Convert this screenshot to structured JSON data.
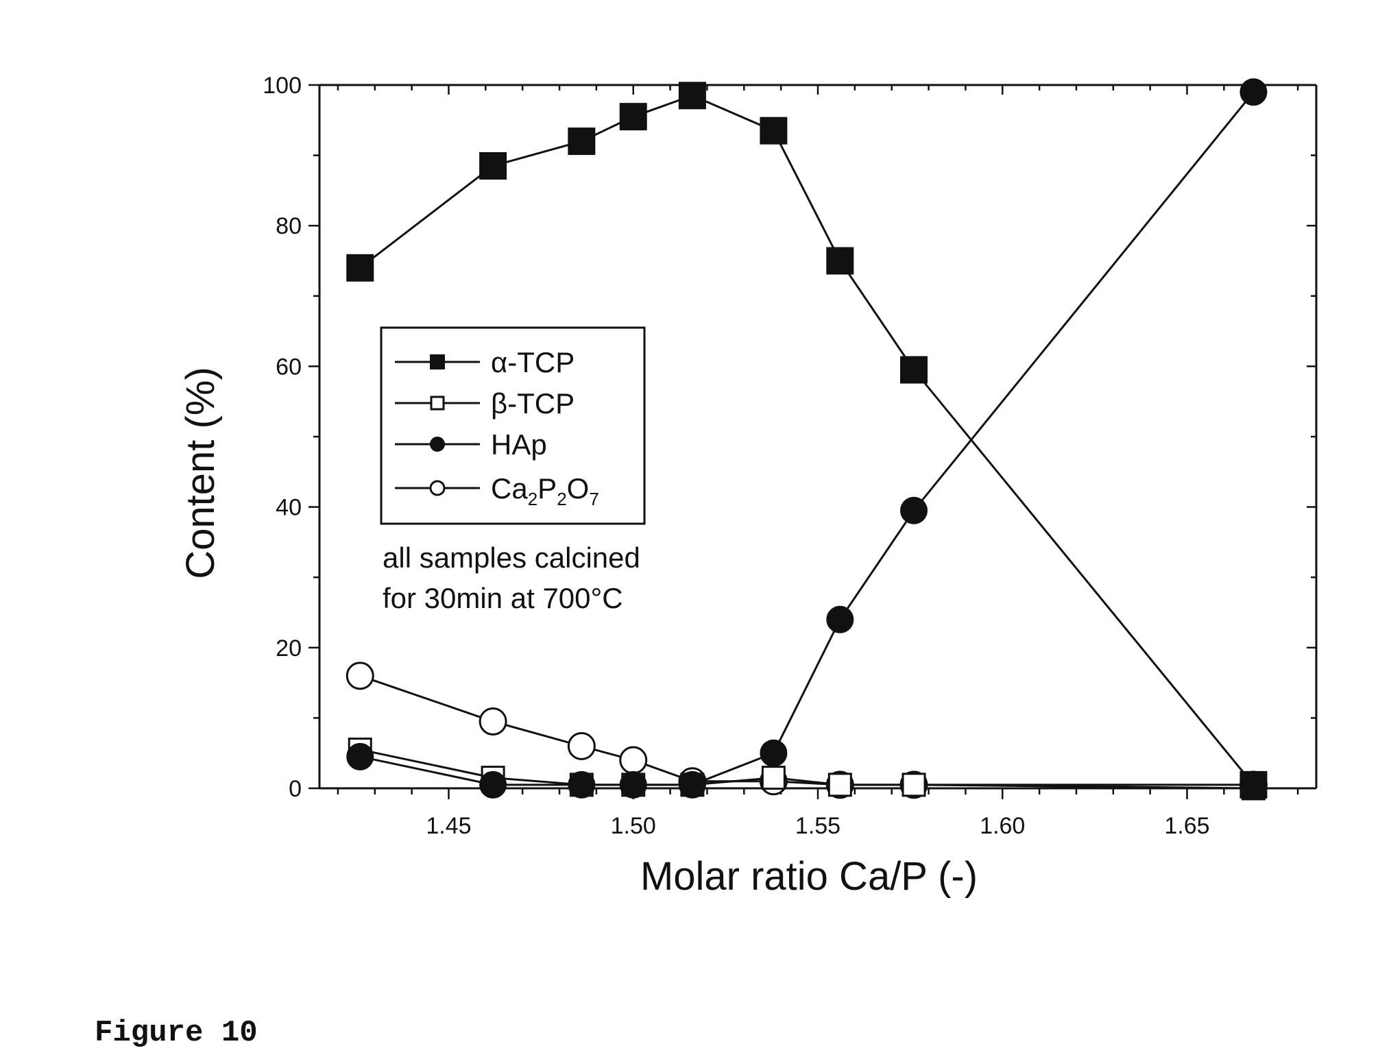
{
  "figure_label": "Figure 10",
  "chart_data": {
    "type": "line",
    "title": "",
    "xlabel": "Molar ratio Ca/P (-)",
    "ylabel": "Content (%)",
    "xlim": [
      1.415,
      1.685
    ],
    "ylim": [
      0,
      100
    ],
    "x_ticks": [
      1.45,
      1.5,
      1.55,
      1.6,
      1.65
    ],
    "x_tick_labels": [
      "1.45",
      "1.50",
      "1.55",
      "1.60",
      "1.65"
    ],
    "y_ticks": [
      0,
      20,
      40,
      60,
      80,
      100
    ],
    "y_tick_labels": [
      "0",
      "20",
      "40",
      "60",
      "80",
      "100"
    ],
    "grid": false,
    "legend_position": "middle-left",
    "legend": [
      {
        "label": "α-TCP",
        "marker": "filled-square"
      },
      {
        "label": "β-TCP",
        "marker": "open-square"
      },
      {
        "label": "HAp",
        "marker": "filled-circle"
      },
      {
        "label": "Ca₂P₂O₇",
        "marker": "open-circle"
      }
    ],
    "annotation": [
      "all samples calcined",
      "for 30min at 700°C"
    ],
    "series": [
      {
        "name": "α-TCP",
        "marker": "filled-square",
        "x": [
          1.426,
          1.462,
          1.486,
          1.5,
          1.516,
          1.538,
          1.556,
          1.576,
          1.668
        ],
        "y": [
          74,
          88.5,
          92,
          95.5,
          98.5,
          93.5,
          75,
          59.5,
          0.5
        ]
      },
      {
        "name": "β-TCP",
        "marker": "open-square",
        "x": [
          1.426,
          1.462,
          1.486,
          1.5,
          1.516,
          1.538,
          1.556,
          1.576,
          1.668
        ],
        "y": [
          5.5,
          1.5,
          0.5,
          0.5,
          0.5,
          1.5,
          0.5,
          0.5,
          0
        ]
      },
      {
        "name": "HAp",
        "marker": "filled-circle",
        "x": [
          1.426,
          1.462,
          1.486,
          1.5,
          1.516,
          1.538,
          1.556,
          1.576,
          1.668
        ],
        "y": [
          4.5,
          0.5,
          0.5,
          0.5,
          0.5,
          5,
          24,
          39.5,
          99
        ]
      },
      {
        "name": "Ca₂P₂O₇",
        "marker": "open-circle",
        "x": [
          1.426,
          1.462,
          1.486,
          1.5,
          1.516,
          1.538,
          1.556,
          1.576,
          1.668
        ],
        "y": [
          16,
          9.5,
          6,
          4,
          1,
          1,
          0.5,
          0.5,
          0.5
        ]
      }
    ]
  }
}
